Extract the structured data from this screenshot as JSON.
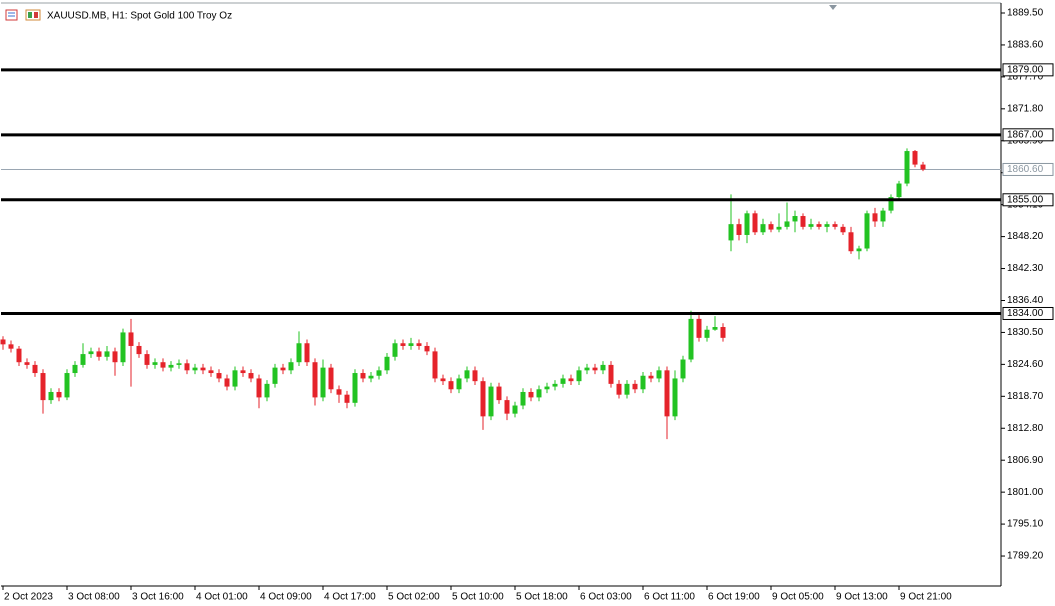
{
  "chart_data": {
    "type": "candlestick",
    "title": "XAUUSD.MB, H1:  Spot Gold 100 Troy Oz",
    "up_color": "#22c322",
    "down_color": "#e5232b",
    "ylim": [
      1783.85,
      1891.9
    ],
    "yticks": [
      {
        "value": 1889.5,
        "label": "1889.50"
      },
      {
        "value": 1883.6,
        "label": "1883.60"
      },
      {
        "value": 1877.7,
        "label": "1877.70"
      },
      {
        "value": 1871.8,
        "label": "1871.80"
      },
      {
        "value": 1865.9,
        "label": "1865.90"
      },
      {
        "value": 1860.0,
        "label": "1860.00"
      },
      {
        "value": 1854.1,
        "label": "1854.10"
      },
      {
        "value": 1848.2,
        "label": "1848.20"
      },
      {
        "value": 1842.3,
        "label": "1842.30"
      },
      {
        "value": 1836.4,
        "label": "1836.40"
      },
      {
        "value": 1830.5,
        "label": "1830.50"
      },
      {
        "value": 1824.6,
        "label": "1824.60"
      },
      {
        "value": 1818.7,
        "label": "1818.70"
      },
      {
        "value": 1812.8,
        "label": "1812.80"
      },
      {
        "value": 1806.9,
        "label": "1806.90"
      },
      {
        "value": 1801.0,
        "label": "1801.00"
      },
      {
        "value": 1795.1,
        "label": "1795.10"
      },
      {
        "value": 1789.2,
        "label": "1789.20"
      }
    ],
    "levels": [
      {
        "value": 1879,
        "label": "1879.00"
      },
      {
        "value": 1867,
        "label": "1867.00"
      },
      {
        "value": 1855,
        "label": "1855.00"
      },
      {
        "value": 1834,
        "label": "1834.00"
      }
    ],
    "last_price": {
      "value": 1860.6,
      "label": "1860.60"
    },
    "categories": [
      "2 Oct 2023",
      null,
      null,
      null,
      null,
      null,
      null,
      null,
      "3 Oct 08:00",
      null,
      null,
      null,
      null,
      null,
      null,
      null,
      "3 Oct 16:00",
      null,
      null,
      null,
      null,
      null,
      null,
      null,
      "4 Oct 01:00",
      null,
      null,
      null,
      null,
      null,
      null,
      null,
      "4 Oct 09:00",
      null,
      null,
      null,
      null,
      null,
      null,
      null,
      "4 Oct 17:00",
      null,
      null,
      null,
      null,
      null,
      null,
      null,
      "5 Oct 02:00",
      null,
      null,
      null,
      null,
      null,
      null,
      null,
      "5 Oct 10:00",
      null,
      null,
      null,
      null,
      null,
      null,
      null,
      "5 Oct 18:00",
      null,
      null,
      null,
      null,
      null,
      null,
      null,
      "6 Oct 03:00",
      null,
      null,
      null,
      null,
      null,
      null,
      null,
      "6 Oct 11:00",
      null,
      null,
      null,
      null,
      null,
      null,
      null,
      "6 Oct 19:00",
      null,
      null,
      null,
      null,
      null,
      null,
      null,
      "9 Oct 05:00",
      null,
      null,
      null,
      null,
      null,
      null,
      null,
      "9 Oct 13:00",
      null,
      null,
      null,
      null,
      null,
      null,
      null,
      "9 Oct 21:00",
      null,
      null,
      null
    ],
    "ohlc": [
      [
        1829.2,
        1829.8,
        1827.3,
        1828.3
      ],
      [
        1828.3,
        1829.0,
        1826.8,
        1827.5
      ],
      [
        1827.5,
        1828.0,
        1824.3,
        1825.0
      ],
      [
        1825.0,
        1825.7,
        1823.8,
        1824.5
      ],
      [
        1824.5,
        1825.2,
        1822.3,
        1823.0
      ],
      [
        1823.0,
        1823.7,
        1815.5,
        1818.0
      ],
      [
        1818.0,
        1820.2,
        1817.3,
        1819.5
      ],
      [
        1819.5,
        1820.2,
        1817.8,
        1818.5
      ],
      [
        1818.5,
        1823.7,
        1818.0,
        1823.0
      ],
      [
        1823.0,
        1825.2,
        1822.3,
        1824.5
      ],
      [
        1824.5,
        1828.5,
        1824.0,
        1826.5
      ],
      [
        1826.5,
        1827.7,
        1825.8,
        1827.0
      ],
      [
        1827.0,
        1827.7,
        1825.3,
        1826.0
      ],
      [
        1826.0,
        1828.0,
        1825.3,
        1827.0
      ],
      [
        1827.0,
        1827.7,
        1822.5,
        1825.0
      ],
      [
        1825.0,
        1831.2,
        1824.3,
        1830.5
      ],
      [
        1830.5,
        1833.0,
        1820.5,
        1828.0
      ],
      [
        1828.0,
        1828.7,
        1825.8,
        1826.5
      ],
      [
        1826.5,
        1827.2,
        1823.8,
        1824.5
      ],
      [
        1824.5,
        1825.7,
        1823.8,
        1825.0
      ],
      [
        1825.0,
        1825.7,
        1823.3,
        1824.0
      ],
      [
        1824.0,
        1825.2,
        1823.3,
        1824.5
      ],
      [
        1824.5,
        1825.5,
        1823.8,
        1824.8
      ],
      [
        1824.8,
        1825.5,
        1822.8,
        1823.5
      ],
      [
        1823.5,
        1824.7,
        1822.8,
        1824.0
      ],
      [
        1824.0,
        1824.7,
        1822.8,
        1823.5
      ],
      [
        1823.5,
        1824.2,
        1822.3,
        1823.0
      ],
      [
        1823.0,
        1823.7,
        1821.3,
        1822.0
      ],
      [
        1822.0,
        1822.7,
        1819.8,
        1820.5
      ],
      [
        1820.5,
        1824.2,
        1819.8,
        1823.5
      ],
      [
        1823.5,
        1824.2,
        1822.3,
        1823.0
      ],
      [
        1823.0,
        1823.7,
        1821.3,
        1822.0
      ],
      [
        1822.0,
        1822.7,
        1816.5,
        1818.5
      ],
      [
        1818.5,
        1821.7,
        1817.8,
        1821.0
      ],
      [
        1821.0,
        1824.7,
        1820.3,
        1824.0
      ],
      [
        1824.0,
        1824.7,
        1822.8,
        1823.5
      ],
      [
        1823.5,
        1825.7,
        1822.8,
        1825.0
      ],
      [
        1825.0,
        1830.7,
        1824.3,
        1828.5
      ],
      [
        1828.5,
        1829.2,
        1824.3,
        1825.0
      ],
      [
        1825.0,
        1825.7,
        1817.0,
        1818.5
      ],
      [
        1818.5,
        1825.5,
        1817.8,
        1824.0
      ],
      [
        1824.0,
        1824.7,
        1819.3,
        1820.0
      ],
      [
        1820.0,
        1820.7,
        1817.5,
        1819.0
      ],
      [
        1819.0,
        1819.7,
        1816.5,
        1817.5
      ],
      [
        1817.5,
        1823.7,
        1816.8,
        1823.0
      ],
      [
        1823.0,
        1823.7,
        1821.3,
        1822.0
      ],
      [
        1822.0,
        1823.2,
        1821.3,
        1822.5
      ],
      [
        1822.5,
        1824.2,
        1821.8,
        1823.5
      ],
      [
        1823.5,
        1826.7,
        1822.8,
        1826.0
      ],
      [
        1826.0,
        1829.2,
        1825.3,
        1828.5
      ],
      [
        1828.5,
        1829.2,
        1827.3,
        1828.0
      ],
      [
        1828.0,
        1829.5,
        1827.3,
        1828.5
      ],
      [
        1828.5,
        1829.2,
        1827.3,
        1828.0
      ],
      [
        1828.0,
        1828.7,
        1826.3,
        1827.0
      ],
      [
        1827.0,
        1827.7,
        1821.3,
        1822.0
      ],
      [
        1822.0,
        1822.7,
        1820.8,
        1821.5
      ],
      [
        1821.5,
        1822.2,
        1819.3,
        1820.0
      ],
      [
        1820.0,
        1822.7,
        1819.3,
        1822.0
      ],
      [
        1822.0,
        1824.2,
        1821.3,
        1823.5
      ],
      [
        1823.5,
        1824.2,
        1820.8,
        1821.5
      ],
      [
        1821.5,
        1822.2,
        1812.5,
        1815.0
      ],
      [
        1815.0,
        1821.2,
        1814.3,
        1820.5
      ],
      [
        1820.5,
        1821.2,
        1817.3,
        1818.0
      ],
      [
        1818.0,
        1818.7,
        1814.3,
        1815.5
      ],
      [
        1815.5,
        1817.7,
        1814.8,
        1817.0
      ],
      [
        1817.0,
        1820.2,
        1816.3,
        1819.5
      ],
      [
        1819.5,
        1820.2,
        1817.8,
        1818.5
      ],
      [
        1818.5,
        1820.7,
        1817.8,
        1820.0
      ],
      [
        1820.0,
        1821.2,
        1819.3,
        1820.5
      ],
      [
        1820.5,
        1821.7,
        1819.8,
        1821.0
      ],
      [
        1821.0,
        1822.7,
        1820.3,
        1822.0
      ],
      [
        1822.0,
        1822.7,
        1820.8,
        1821.5
      ],
      [
        1821.5,
        1824.2,
        1820.8,
        1823.5
      ],
      [
        1823.5,
        1824.7,
        1822.8,
        1824.0
      ],
      [
        1824.0,
        1824.7,
        1822.8,
        1823.5
      ],
      [
        1823.5,
        1825.2,
        1822.8,
        1824.5
      ],
      [
        1824.5,
        1825.2,
        1820.3,
        1821.0
      ],
      [
        1821.0,
        1821.7,
        1818.3,
        1819.0
      ],
      [
        1819.0,
        1821.7,
        1818.3,
        1821.0
      ],
      [
        1821.0,
        1821.7,
        1819.3,
        1820.0
      ],
      [
        1820.0,
        1823.2,
        1819.3,
        1822.5
      ],
      [
        1822.5,
        1823.2,
        1821.3,
        1822.0
      ],
      [
        1822.0,
        1824.2,
        1821.3,
        1823.5
      ],
      [
        1823.5,
        1824.2,
        1810.8,
        1815.0
      ],
      [
        1815.0,
        1823.5,
        1814.3,
        1822.0
      ],
      [
        1822.0,
        1826.2,
        1821.3,
        1825.5
      ],
      [
        1825.5,
        1834.5,
        1825.0,
        1833.0
      ],
      [
        1833.0,
        1833.7,
        1828.8,
        1829.5
      ],
      [
        1829.5,
        1831.7,
        1828.8,
        1831.0
      ],
      [
        1831.0,
        1833.5,
        1830.8,
        1831.5
      ],
      [
        1831.5,
        1832.2,
        1828.8,
        1829.5
      ],
      [
        1847.5,
        1856.0,
        1845.5,
        1850.5
      ],
      [
        1850.5,
        1851.5,
        1847.5,
        1848.5
      ],
      [
        1848.5,
        1853.0,
        1847.0,
        1852.5
      ],
      [
        1852.5,
        1853.0,
        1848.5,
        1849.0
      ],
      [
        1849.0,
        1851.5,
        1848.5,
        1850.5
      ],
      [
        1850.5,
        1851.0,
        1849.0,
        1849.5
      ],
      [
        1849.5,
        1852.5,
        1849.0,
        1850.0
      ],
      [
        1850.0,
        1854.5,
        1849.5,
        1851.0
      ],
      [
        1851.0,
        1853.0,
        1849.0,
        1852.0
      ],
      [
        1852.0,
        1852.5,
        1849.5,
        1850.0
      ],
      [
        1850.0,
        1851.5,
        1849.5,
        1850.5
      ],
      [
        1850.5,
        1851.0,
        1849.5,
        1850.0
      ],
      [
        1850.0,
        1851.0,
        1849.0,
        1850.5
      ],
      [
        1850.5,
        1851.0,
        1849.5,
        1850.0
      ],
      [
        1850.0,
        1850.5,
        1848.5,
        1849.0
      ],
      [
        1849.0,
        1850.0,
        1845.0,
        1845.5
      ],
      [
        1845.5,
        1846.5,
        1844.0,
        1846.0
      ],
      [
        1846.0,
        1853.0,
        1845.5,
        1852.5
      ],
      [
        1852.5,
        1853.5,
        1850.0,
        1851.0
      ],
      [
        1851.0,
        1853.5,
        1850.0,
        1853.0
      ],
      [
        1853.0,
        1856.0,
        1852.5,
        1855.5
      ],
      [
        1855.5,
        1858.5,
        1855.0,
        1858.0
      ],
      [
        1858.0,
        1864.5,
        1857.5,
        1864.0
      ],
      [
        1864.0,
        1864.2,
        1861.0,
        1861.5
      ],
      [
        1861.5,
        1862.0,
        1860.3,
        1860.6
      ]
    ]
  }
}
